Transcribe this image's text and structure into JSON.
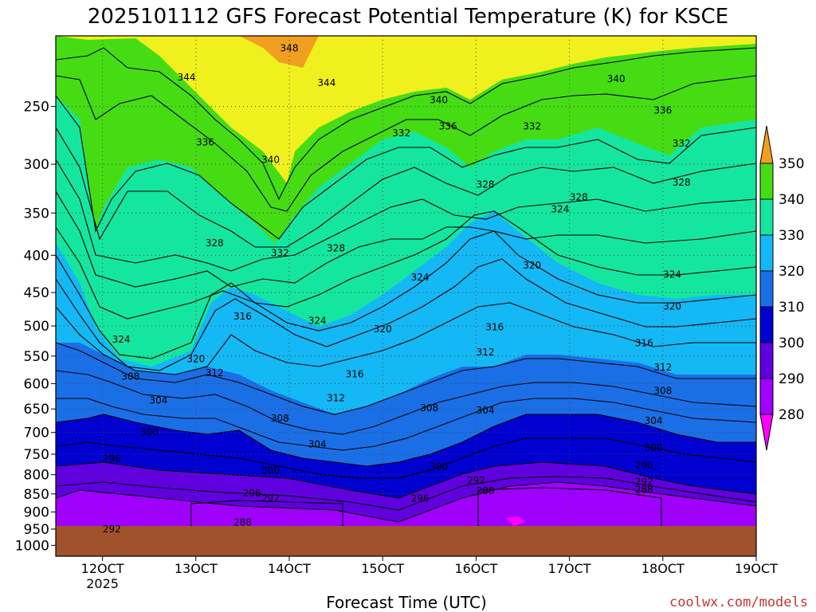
{
  "chart_data": {
    "type": "contour",
    "title": "2025101112 GFS Forecast Potential Temperature (K) for KSCE",
    "xlabel": "Forecast Time (UTC)",
    "ylabel": "",
    "credit": "coolwx.com/models",
    "x_ticks": [
      "12OCT",
      "13OCT",
      "14OCT",
      "15OCT",
      "16OCT",
      "17OCT",
      "18OCT",
      "19OCT"
    ],
    "x_year": "2025",
    "y_ticks": [
      "250",
      "300",
      "350",
      "400",
      "450",
      "500",
      "550",
      "600",
      "650",
      "700",
      "750",
      "800",
      "850",
      "900",
      "950",
      "1000"
    ],
    "y_values": [
      250,
      300,
      350,
      400,
      450,
      500,
      550,
      600,
      650,
      700,
      750,
      800,
      850,
      900,
      950,
      1000
    ],
    "y_scale": "log-pressure",
    "ylim": [
      200,
      1035
    ],
    "xlim": [
      11.5,
      19.0
    ],
    "colorbar": {
      "levels": [
        "280",
        "290",
        "300",
        "310",
        "320",
        "330",
        "340",
        "350"
      ],
      "colors": [
        "#ff00ff",
        "#a000ff",
        "#6000e0",
        "#0000d0",
        "#1a6fe6",
        "#14b8f5",
        "#14e6a0",
        "#46dc14",
        "#f0f01e",
        "#f0a01e"
      ]
    },
    "contour_labels": [
      {
        "x": 14.0,
        "p": 208,
        "text": "348"
      },
      {
        "x": 12.9,
        "p": 228,
        "text": "344"
      },
      {
        "x": 14.4,
        "p": 232,
        "text": "344"
      },
      {
        "x": 15.6,
        "p": 245,
        "text": "340"
      },
      {
        "x": 17.5,
        "p": 229,
        "text": "340"
      },
      {
        "x": 18.0,
        "p": 253,
        "text": "336"
      },
      {
        "x": 15.2,
        "p": 272,
        "text": "332"
      },
      {
        "x": 15.7,
        "p": 266,
        "text": "336"
      },
      {
        "x": 16.6,
        "p": 266,
        "text": "332"
      },
      {
        "x": 13.1,
        "p": 280,
        "text": "336"
      },
      {
        "x": 13.8,
        "p": 296,
        "text": "340"
      },
      {
        "x": 18.2,
        "p": 281,
        "text": "332"
      },
      {
        "x": 18.2,
        "p": 318,
        "text": "328"
      },
      {
        "x": 16.1,
        "p": 320,
        "text": "328"
      },
      {
        "x": 17.1,
        "p": 333,
        "text": "328"
      },
      {
        "x": 16.9,
        "p": 346,
        "text": "324"
      },
      {
        "x": 13.2,
        "p": 385,
        "text": "328"
      },
      {
        "x": 13.9,
        "p": 397,
        "text": "332"
      },
      {
        "x": 14.5,
        "p": 391,
        "text": "328"
      },
      {
        "x": 16.6,
        "p": 413,
        "text": "320"
      },
      {
        "x": 18.1,
        "p": 425,
        "text": "324"
      },
      {
        "x": 15.4,
        "p": 429,
        "text": "324"
      },
      {
        "x": 18.1,
        "p": 470,
        "text": "320"
      },
      {
        "x": 13.5,
        "p": 485,
        "text": "316"
      },
      {
        "x": 14.3,
        "p": 492,
        "text": "324"
      },
      {
        "x": 15.0,
        "p": 505,
        "text": "320"
      },
      {
        "x": 16.2,
        "p": 502,
        "text": "316"
      },
      {
        "x": 12.2,
        "p": 522,
        "text": "324"
      },
      {
        "x": 17.8,
        "p": 528,
        "text": "316"
      },
      {
        "x": 16.1,
        "p": 543,
        "text": "312"
      },
      {
        "x": 13.0,
        "p": 555,
        "text": "320"
      },
      {
        "x": 18.0,
        "p": 570,
        "text": "312"
      },
      {
        "x": 13.2,
        "p": 580,
        "text": "312"
      },
      {
        "x": 12.3,
        "p": 587,
        "text": "308"
      },
      {
        "x": 14.7,
        "p": 582,
        "text": "316"
      },
      {
        "x": 18.0,
        "p": 614,
        "text": "308"
      },
      {
        "x": 12.6,
        "p": 633,
        "text": "304"
      },
      {
        "x": 14.5,
        "p": 628,
        "text": "312"
      },
      {
        "x": 15.5,
        "p": 648,
        "text": "308"
      },
      {
        "x": 16.1,
        "p": 653,
        "text": "304"
      },
      {
        "x": 13.9,
        "p": 670,
        "text": "308"
      },
      {
        "x": 17.9,
        "p": 675,
        "text": "304"
      },
      {
        "x": 12.5,
        "p": 700,
        "text": "300"
      },
      {
        "x": 14.3,
        "p": 727,
        "text": "304"
      },
      {
        "x": 17.9,
        "p": 735,
        "text": "300"
      },
      {
        "x": 12.1,
        "p": 760,
        "text": "296"
      },
      {
        "x": 15.6,
        "p": 780,
        "text": "300"
      },
      {
        "x": 13.8,
        "p": 790,
        "text": "300"
      },
      {
        "x": 17.8,
        "p": 777,
        "text": "296"
      },
      {
        "x": 16.0,
        "p": 815,
        "text": "292"
      },
      {
        "x": 17.8,
        "p": 818,
        "text": "292"
      },
      {
        "x": 16.1,
        "p": 842,
        "text": "288"
      },
      {
        "x": 17.8,
        "p": 839,
        "text": "288"
      },
      {
        "x": 13.6,
        "p": 848,
        "text": "296"
      },
      {
        "x": 13.8,
        "p": 862,
        "text": "292"
      },
      {
        "x": 15.4,
        "p": 862,
        "text": "296"
      },
      {
        "x": 13.5,
        "p": 930,
        "text": "288"
      },
      {
        "x": 12.1,
        "p": 950,
        "text": "292"
      }
    ]
  }
}
